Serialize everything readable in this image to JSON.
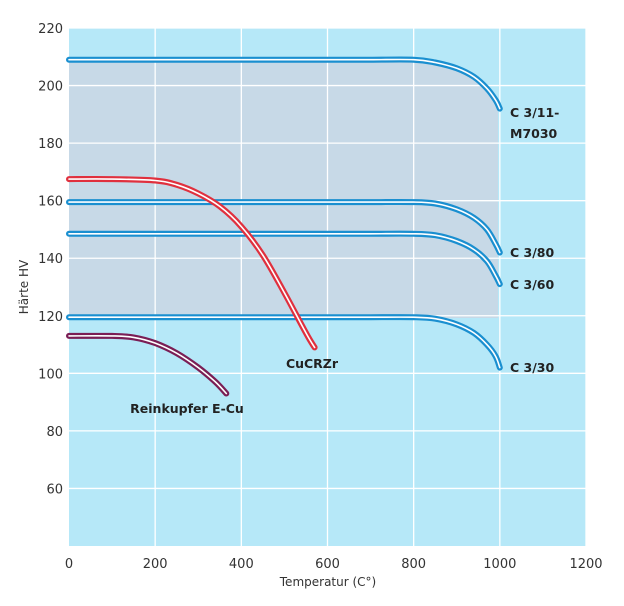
{
  "chart_data": {
    "type": "line",
    "title": "",
    "xlabel": "Temperatur (C°)",
    "ylabel": "Härte HV",
    "xlim": [
      0,
      1200
    ],
    "ylim": [
      40,
      220
    ],
    "xticks": [
      0,
      200,
      400,
      600,
      800,
      1000,
      1200
    ],
    "yticks": [
      60,
      80,
      100,
      120,
      140,
      160,
      180,
      200,
      220
    ],
    "grid": true,
    "legend": "none",
    "colors": {
      "plot_background": "#b6e8f8",
      "shaded_band": "#c7d9e7",
      "grid": "#ffffff",
      "blue_series": "#1a8fd0",
      "red_series": "#e0303e",
      "purple_series": "#7a1e55"
    },
    "series": [
      {
        "name": "C 3/11-M7030",
        "color": "#1a8fd0",
        "x": [
          0,
          100,
          200,
          300,
          400,
          500,
          600,
          700,
          800,
          850,
          900,
          940,
          970,
          990,
          1000
        ],
        "y": [
          209,
          209,
          209,
          209,
          209,
          209,
          209,
          209,
          209,
          208,
          206,
          203,
          199,
          195,
          192
        ]
      },
      {
        "name": "C 3/80",
        "color": "#1a8fd0",
        "x": [
          0,
          100,
          200,
          300,
          400,
          500,
          600,
          700,
          800,
          850,
          900,
          940,
          970,
          990,
          1000
        ],
        "y": [
          159.5,
          159.5,
          159.5,
          159.5,
          159.5,
          159.5,
          159.5,
          159.5,
          159.5,
          159,
          157,
          154,
          150,
          145,
          142
        ]
      },
      {
        "name": "C 3/60",
        "color": "#1a8fd0",
        "x": [
          0,
          100,
          200,
          300,
          400,
          500,
          600,
          700,
          800,
          850,
          900,
          940,
          970,
          990,
          1000
        ],
        "y": [
          148.5,
          148.5,
          148.5,
          148.5,
          148.5,
          148.5,
          148.5,
          148.5,
          148.5,
          148,
          146,
          143,
          139,
          134,
          131
        ]
      },
      {
        "name": "C 3/30",
        "color": "#1a8fd0",
        "x": [
          0,
          100,
          200,
          300,
          400,
          500,
          600,
          700,
          800,
          850,
          900,
          940,
          970,
          990,
          1000
        ],
        "y": [
          119.5,
          119.5,
          119.5,
          119.5,
          119.5,
          119.5,
          119.5,
          119.5,
          119.5,
          119,
          117,
          114,
          110,
          106,
          102
        ]
      },
      {
        "name": "CuCRZr",
        "color": "#e0303e",
        "x": [
          0,
          100,
          200,
          250,
          300,
          350,
          400,
          450,
          500,
          550,
          570
        ],
        "y": [
          167.5,
          167.5,
          167,
          165.5,
          162.5,
          158,
          151,
          141,
          128,
          114,
          109
        ]
      },
      {
        "name": "Reinkupfer E-Cu",
        "color": "#7a1e55",
        "x": [
          0,
          100,
          150,
          200,
          250,
          300,
          340,
          365
        ],
        "y": [
          113,
          113,
          112.5,
          110.5,
          107,
          102,
          97,
          93
        ]
      }
    ],
    "annotations": [
      {
        "series": "C 3/11-M7030",
        "lines": [
          "C 3/11-",
          "M7030"
        ]
      },
      {
        "series": "C 3/80",
        "lines": [
          "C 3/80"
        ]
      },
      {
        "series": "C 3/60",
        "lines": [
          "C 3/60"
        ]
      },
      {
        "series": "C 3/30",
        "lines": [
          "C 3/30"
        ]
      },
      {
        "series": "CuCRZr",
        "lines": [
          "CuCRZr"
        ]
      },
      {
        "series": "Reinkupfer E-Cu",
        "lines": [
          "Reinkupfer E-Cu"
        ]
      }
    ]
  }
}
